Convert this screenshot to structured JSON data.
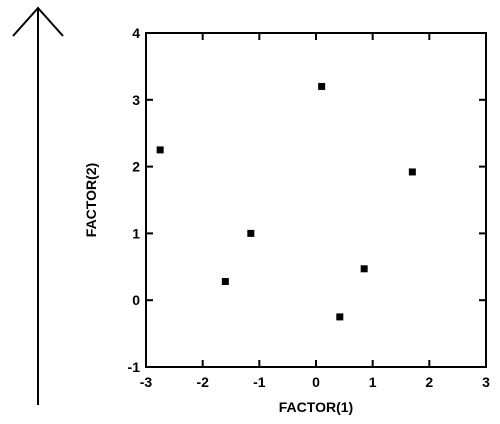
{
  "chart_data": {
    "type": "scatter",
    "title": "",
    "xlabel": "FACTOR(1)",
    "ylabel": "FACTOR(2)",
    "xlim": [
      -3,
      3
    ],
    "ylim": [
      -1,
      4
    ],
    "x_ticks": [
      -3,
      -2,
      -1,
      0,
      1,
      2,
      3
    ],
    "y_ticks": [
      -1,
      0,
      1,
      2,
      3,
      4
    ],
    "grid": false,
    "marker_color": "#000000",
    "points": [
      {
        "x": 0.1,
        "y": 3.2
      },
      {
        "x": -2.75,
        "y": 2.25
      },
      {
        "x": 1.7,
        "y": 1.92
      },
      {
        "x": -1.15,
        "y": 1.0
      },
      {
        "x": -1.6,
        "y": 0.28
      },
      {
        "x": 0.85,
        "y": 0.47
      },
      {
        "x": 0.42,
        "y": -0.25
      }
    ]
  }
}
